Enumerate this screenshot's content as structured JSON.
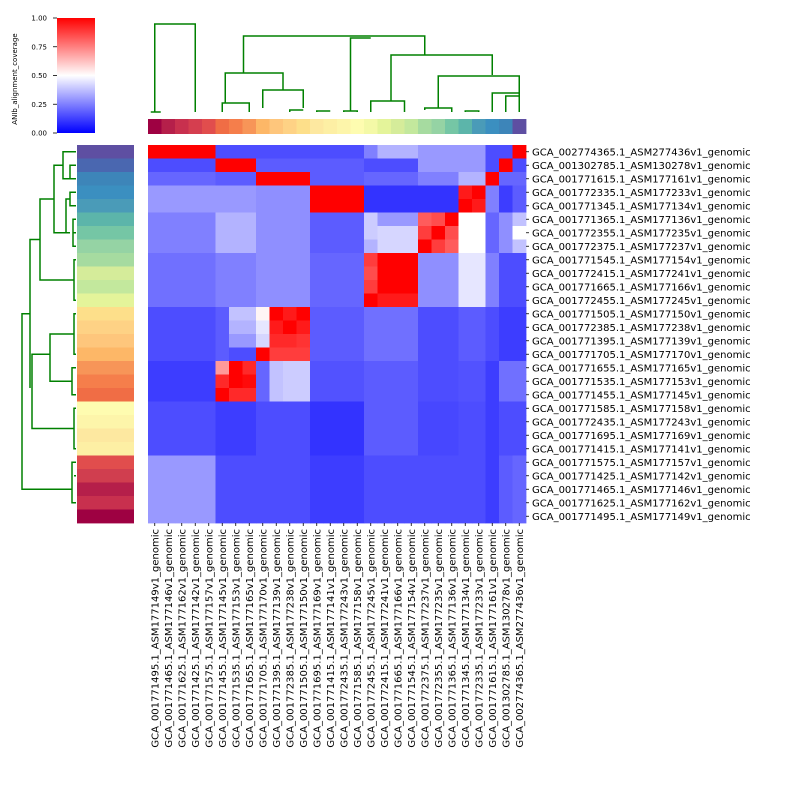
{
  "chart_data": {
    "type": "heatmap",
    "title": "",
    "colorbar": {
      "label": "ANIb_alignment_coverage",
      "ticks": [
        "0.00",
        "0.25",
        "0.50",
        "0.75",
        "1.00"
      ],
      "range": [
        0,
        1
      ],
      "colors": [
        "#0000ff",
        "#ffffff",
        "#ff0000"
      ]
    },
    "row_labels": [
      "GCA_002774365.1_ASM277436v1_genomic",
      "GCA_001302785.1_ASM130278v1_genomic",
      "GCA_001771615.1_ASM177161v1_genomic",
      "GCA_001772335.1_ASM177233v1_genomic",
      "GCA_001771345.1_ASM177134v1_genomic",
      "GCA_001771365.1_ASM177136v1_genomic",
      "GCA_001772355.1_ASM177235v1_genomic",
      "GCA_001772375.1_ASM177237v1_genomic",
      "GCA_001771545.1_ASM177154v1_genomic",
      "GCA_001772415.1_ASM177241v1_genomic",
      "GCA_001771665.1_ASM177166v1_genomic",
      "GCA_001772455.1_ASM177245v1_genomic",
      "GCA_001771505.1_ASM177150v1_genomic",
      "GCA_001772385.1_ASM177238v1_genomic",
      "GCA_001771395.1_ASM177139v1_genomic",
      "GCA_001771705.1_ASM177170v1_genomic",
      "GCA_001771655.1_ASM177165v1_genomic",
      "GCA_001771535.1_ASM177153v1_genomic",
      "GCA_001771455.1_ASM177145v1_genomic",
      "GCA_001771585.1_ASM177158v1_genomic",
      "GCA_001772435.1_ASM177243v1_genomic",
      "GCA_001771695.1_ASM177169v1_genomic",
      "GCA_001771415.1_ASM177141v1_genomic",
      "GCA_001771575.1_ASM177157v1_genomic",
      "GCA_001771425.1_ASM177142v1_genomic",
      "GCA_001771465.1_ASM177146v1_genomic",
      "GCA_001771625.1_ASM177162v1_genomic",
      "GCA_001771495.1_ASM177149v1_genomic"
    ],
    "col_labels": [
      "GCA_001771495.1_ASM177149v1_genomic",
      "GCA_001771465.1_ASM177146v1_genomic",
      "GCA_001771625.1_ASM177162v1_genomic",
      "GCA_001771425.1_ASM177142v1_genomic",
      "GCA_001771575.1_ASM177157v1_genomic",
      "GCA_001771455.1_ASM177145v1_genomic",
      "GCA_001771535.1_ASM177153v1_genomic",
      "GCA_001771655.1_ASM177165v1_genomic",
      "GCA_001771705.1_ASM177170v1_genomic",
      "GCA_001771395.1_ASM177139v1_genomic",
      "GCA_001772385.1_ASM177238v1_genomic",
      "GCA_001771505.1_ASM177150v1_genomic",
      "GCA_001771695.1_ASM177169v1_genomic",
      "GCA_001771415.1_ASM177141v1_genomic",
      "GCA_001772435.1_ASM177243v1_genomic",
      "GCA_001771585.1_ASM177158v1_genomic",
      "GCA_001772455.1_ASM177245v1_genomic",
      "GCA_001772415.1_ASM177241v1_genomic",
      "GCA_001771665.1_ASM177166v1_genomic",
      "GCA_001771545.1_ASM177154v1_genomic",
      "GCA_001772375.1_ASM177237v1_genomic",
      "GCA_001772355.1_ASM177235v1_genomic",
      "GCA_001771365.1_ASM177136v1_genomic",
      "GCA_001771345.1_ASM177134v1_genomic",
      "GCA_001772335.1_ASM177233v1_genomic",
      "GCA_001771615.1_ASM177161v1_genomic",
      "GCA_001302785.1_ASM130278v1_genomic",
      "GCA_002774365.1_ASM277436v1_genomic"
    ],
    "row_groups": [
      [
        0
      ],
      [
        1
      ],
      [
        2
      ],
      [
        3,
        4
      ],
      [
        5,
        6,
        7
      ],
      [
        8,
        9,
        10,
        11
      ],
      [
        12,
        13,
        14,
        15
      ],
      [
        16,
        17,
        18
      ],
      [
        19,
        20,
        21,
        22
      ],
      [
        23,
        24,
        25,
        26,
        27
      ]
    ],
    "col_groups": [
      [
        0,
        1,
        2,
        3,
        4
      ],
      [
        5,
        6,
        7
      ],
      [
        8,
        9,
        10,
        11
      ],
      [
        12,
        13,
        14,
        15
      ],
      [
        16,
        17,
        18,
        19
      ],
      [
        20,
        21,
        22
      ],
      [
        23,
        24
      ],
      [
        25
      ],
      [
        26
      ],
      [
        27
      ]
    ],
    "group_values": [
      [
        1.0,
        0.15,
        0.15,
        0.15,
        0.1,
        0.3,
        0.3,
        0.15,
        0.15,
        0.15
      ],
      [
        0.15,
        1.0,
        0.18,
        0.18,
        0.15,
        0.3,
        0.3,
        0.15,
        0.15,
        0.12
      ],
      [
        0.2,
        0.18,
        1.0,
        0.18,
        0.2,
        0.25,
        0.25,
        0.35,
        0.2,
        0.2
      ],
      [
        0.3,
        0.3,
        0.28,
        1.0,
        0.1,
        0.1,
        0.1,
        0.2,
        0.15,
        0.18
      ],
      [
        0.25,
        0.35,
        0.28,
        0.18,
        0.2,
        0.5,
        0.5,
        0.2,
        0.28,
        0.25
      ],
      [
        0.22,
        0.25,
        0.28,
        0.2,
        0.2,
        0.28,
        0.45,
        0.25,
        0.15,
        0.15
      ],
      [
        0.15,
        0.18,
        0.18,
        0.18,
        0.22,
        0.15,
        0.18,
        0.15,
        0.12,
        0.12
      ],
      [
        0.12,
        0.12,
        0.2,
        0.16,
        0.18,
        0.15,
        0.16,
        0.12,
        0.22,
        0.22
      ],
      [
        0.15,
        0.12,
        0.15,
        0.1,
        0.18,
        0.14,
        0.15,
        0.12,
        0.15,
        0.15
      ],
      [
        0.3,
        0.15,
        0.15,
        0.12,
        0.15,
        0.15,
        0.15,
        0.12,
        0.18,
        0.2
      ]
    ],
    "cell_values": [
      {
        "r": 12,
        "c": 8,
        "v": 0.52
      },
      {
        "r": 12,
        "c": 9,
        "v": 1.0
      },
      {
        "r": 12,
        "c": 10,
        "v": 0.95
      },
      {
        "r": 12,
        "c": 11,
        "v": 1.0
      },
      {
        "r": 13,
        "c": 8,
        "v": 0.45
      },
      {
        "r": 13,
        "c": 9,
        "v": 0.95
      },
      {
        "r": 13,
        "c": 10,
        "v": 1.0
      },
      {
        "r": 13,
        "c": 11,
        "v": 0.95
      },
      {
        "r": 14,
        "c": 8,
        "v": 0.42
      },
      {
        "r": 14,
        "c": 9,
        "v": 0.92
      },
      {
        "r": 14,
        "c": 10,
        "v": 0.92
      },
      {
        "r": 14,
        "c": 11,
        "v": 0.9
      },
      {
        "r": 15,
        "c": 8,
        "v": 1.0
      },
      {
        "r": 15,
        "c": 9,
        "v": 0.88
      },
      {
        "r": 15,
        "c": 10,
        "v": 0.88
      },
      {
        "r": 15,
        "c": 11,
        "v": 0.88
      },
      {
        "r": 12,
        "c": 6,
        "v": 0.38
      },
      {
        "r": 12,
        "c": 7,
        "v": 0.38
      },
      {
        "r": 13,
        "c": 6,
        "v": 0.35
      },
      {
        "r": 13,
        "c": 7,
        "v": 0.35
      },
      {
        "r": 14,
        "c": 6,
        "v": 0.3
      },
      {
        "r": 14,
        "c": 7,
        "v": 0.3
      },
      {
        "r": 16,
        "c": 5,
        "v": 0.7
      },
      {
        "r": 16,
        "c": 6,
        "v": 1.0
      },
      {
        "r": 16,
        "c": 7,
        "v": 0.92
      },
      {
        "r": 17,
        "c": 5,
        "v": 0.92
      },
      {
        "r": 17,
        "c": 6,
        "v": 1.0
      },
      {
        "r": 17,
        "c": 7,
        "v": 0.98
      },
      {
        "r": 18,
        "c": 5,
        "v": 1.0
      },
      {
        "r": 18,
        "c": 6,
        "v": 0.92
      },
      {
        "r": 18,
        "c": 7,
        "v": 0.92
      },
      {
        "r": 16,
        "c": 9,
        "v": 0.38
      },
      {
        "r": 16,
        "c": 10,
        "v": 0.4
      },
      {
        "r": 16,
        "c": 11,
        "v": 0.4
      },
      {
        "r": 17,
        "c": 9,
        "v": 0.38
      },
      {
        "r": 17,
        "c": 10,
        "v": 0.4
      },
      {
        "r": 17,
        "c": 11,
        "v": 0.4
      },
      {
        "r": 18,
        "c": 9,
        "v": 0.38
      },
      {
        "r": 18,
        "c": 10,
        "v": 0.4
      },
      {
        "r": 18,
        "c": 11,
        "v": 0.4
      },
      {
        "r": 15,
        "c": 6,
        "v": 0.15
      },
      {
        "r": 15,
        "c": 7,
        "v": 0.15
      },
      {
        "r": 8,
        "c": 16,
        "v": 0.88
      },
      {
        "r": 9,
        "c": 16,
        "v": 0.85
      },
      {
        "r": 10,
        "c": 16,
        "v": 0.88
      },
      {
        "r": 11,
        "c": 16,
        "v": 1.0
      },
      {
        "r": 8,
        "c": 17,
        "v": 1.0
      },
      {
        "r": 9,
        "c": 17,
        "v": 1.0
      },
      {
        "r": 10,
        "c": 17,
        "v": 1.0
      },
      {
        "r": 11,
        "c": 17,
        "v": 0.95
      },
      {
        "r": 8,
        "c": 18,
        "v": 1.0
      },
      {
        "r": 9,
        "c": 18,
        "v": 1.0
      },
      {
        "r": 10,
        "c": 18,
        "v": 1.0
      },
      {
        "r": 11,
        "c": 18,
        "v": 0.95
      },
      {
        "r": 8,
        "c": 19,
        "v": 1.0
      },
      {
        "r": 9,
        "c": 19,
        "v": 1.0
      },
      {
        "r": 10,
        "c": 19,
        "v": 1.0
      },
      {
        "r": 11,
        "c": 19,
        "v": 0.95
      },
      {
        "r": 5,
        "c": 16,
        "v": 0.4
      },
      {
        "r": 6,
        "c": 16,
        "v": 0.4
      },
      {
        "r": 7,
        "c": 16,
        "v": 0.35
      },
      {
        "r": 5,
        "c": 17,
        "v": 0.3
      },
      {
        "r": 5,
        "c": 18,
        "v": 0.3
      },
      {
        "r": 5,
        "c": 19,
        "v": 0.3
      },
      {
        "r": 6,
        "c": 17,
        "v": 0.42
      },
      {
        "r": 6,
        "c": 18,
        "v": 0.42
      },
      {
        "r": 6,
        "c": 19,
        "v": 0.42
      },
      {
        "r": 7,
        "c": 17,
        "v": 0.42
      },
      {
        "r": 7,
        "c": 18,
        "v": 0.42
      },
      {
        "r": 7,
        "c": 19,
        "v": 0.42
      },
      {
        "r": 5,
        "c": 20,
        "v": 0.82
      },
      {
        "r": 5,
        "c": 21,
        "v": 0.85
      },
      {
        "r": 5,
        "c": 22,
        "v": 1.0
      },
      {
        "r": 6,
        "c": 20,
        "v": 0.88
      },
      {
        "r": 6,
        "c": 21,
        "v": 1.0
      },
      {
        "r": 6,
        "c": 22,
        "v": 0.85
      },
      {
        "r": 7,
        "c": 20,
        "v": 1.0
      },
      {
        "r": 7,
        "c": 21,
        "v": 0.88
      },
      {
        "r": 7,
        "c": 22,
        "v": 0.82
      },
      {
        "r": 3,
        "c": 23,
        "v": 0.95
      },
      {
        "r": 3,
        "c": 24,
        "v": 1.0
      },
      {
        "r": 4,
        "c": 23,
        "v": 1.0
      },
      {
        "r": 4,
        "c": 24,
        "v": 0.95
      },
      {
        "r": 0,
        "c": 16,
        "v": 0.25
      },
      {
        "r": 0,
        "c": 17,
        "v": 0.35
      },
      {
        "r": 0,
        "c": 18,
        "v": 0.35
      },
      {
        "r": 0,
        "c": 19,
        "v": 0.35
      },
      {
        "r": 1,
        "c": 26,
        "v": 1.0
      },
      {
        "r": 1,
        "c": 27,
        "v": 0.15
      },
      {
        "r": 2,
        "c": 25,
        "v": 1.0
      },
      {
        "r": 2,
        "c": 27,
        "v": 0.2
      },
      {
        "r": 0,
        "c": 27,
        "v": 1.0
      },
      {
        "r": 2,
        "c": 23,
        "v": 0.35
      },
      {
        "r": 2,
        "c": 24,
        "v": 0.35
      },
      {
        "r": 3,
        "c": 25,
        "v": 0.25
      },
      {
        "r": 4,
        "c": 25,
        "v": 0.25
      },
      {
        "r": 5,
        "c": 27,
        "v": 0.38
      },
      {
        "r": 6,
        "c": 27,
        "v": 0.5
      },
      {
        "r": 7,
        "c": 27,
        "v": 0.38
      },
      {
        "r": 3,
        "c": 26,
        "v": 0.12
      },
      {
        "r": 4,
        "c": 26,
        "v": 0.12
      }
    ],
    "group_colors": [
      "#5e4fa2",
      "#3b6fb6",
      "#3c8dbc",
      "#5cb5aa",
      "#9dd6a4",
      "#e4f49a",
      "#fdcd7a",
      "#f47d4b",
      "#fdf2a8",
      "#d53e4f"
    ],
    "row_palette": [
      "#5e4fa2",
      "#4a67b0",
      "#3d85b9",
      "#3b8fc0",
      "#4a9bb8",
      "#5cb5aa",
      "#75c6a5",
      "#95d3a4",
      "#a6dba0",
      "#d5ec9a",
      "#c3e89d",
      "#e4f49a",
      "#fddf8a",
      "#fed285",
      "#fec67c",
      "#fdb767",
      "#f79558",
      "#f57e4b",
      "#f06d45",
      "#fefcb0",
      "#fdf5aa",
      "#fde8a0",
      "#fdefa4",
      "#e14d4d",
      "#d03e4f",
      "#b51f4a",
      "#c8304e",
      "#9e0142"
    ],
    "col_palette": [
      "#9e0142",
      "#b51f4a",
      "#c8304e",
      "#d53e4f",
      "#e14d4d",
      "#f06d45",
      "#f57e4b",
      "#f79558",
      "#fdb767",
      "#fec67c",
      "#fed285",
      "#fddf8a",
      "#fde8a0",
      "#fdefa4",
      "#fdf5aa",
      "#fefcb0",
      "#f4f9a7",
      "#e4f49a",
      "#d5ec9a",
      "#c3e89d",
      "#a6dba0",
      "#95d3a4",
      "#75c6a5",
      "#5cb5aa",
      "#4a9bb8",
      "#3b8fc0",
      "#3d85b9",
      "#5e4fa2"
    ],
    "dendrogram_color": "#008000"
  }
}
